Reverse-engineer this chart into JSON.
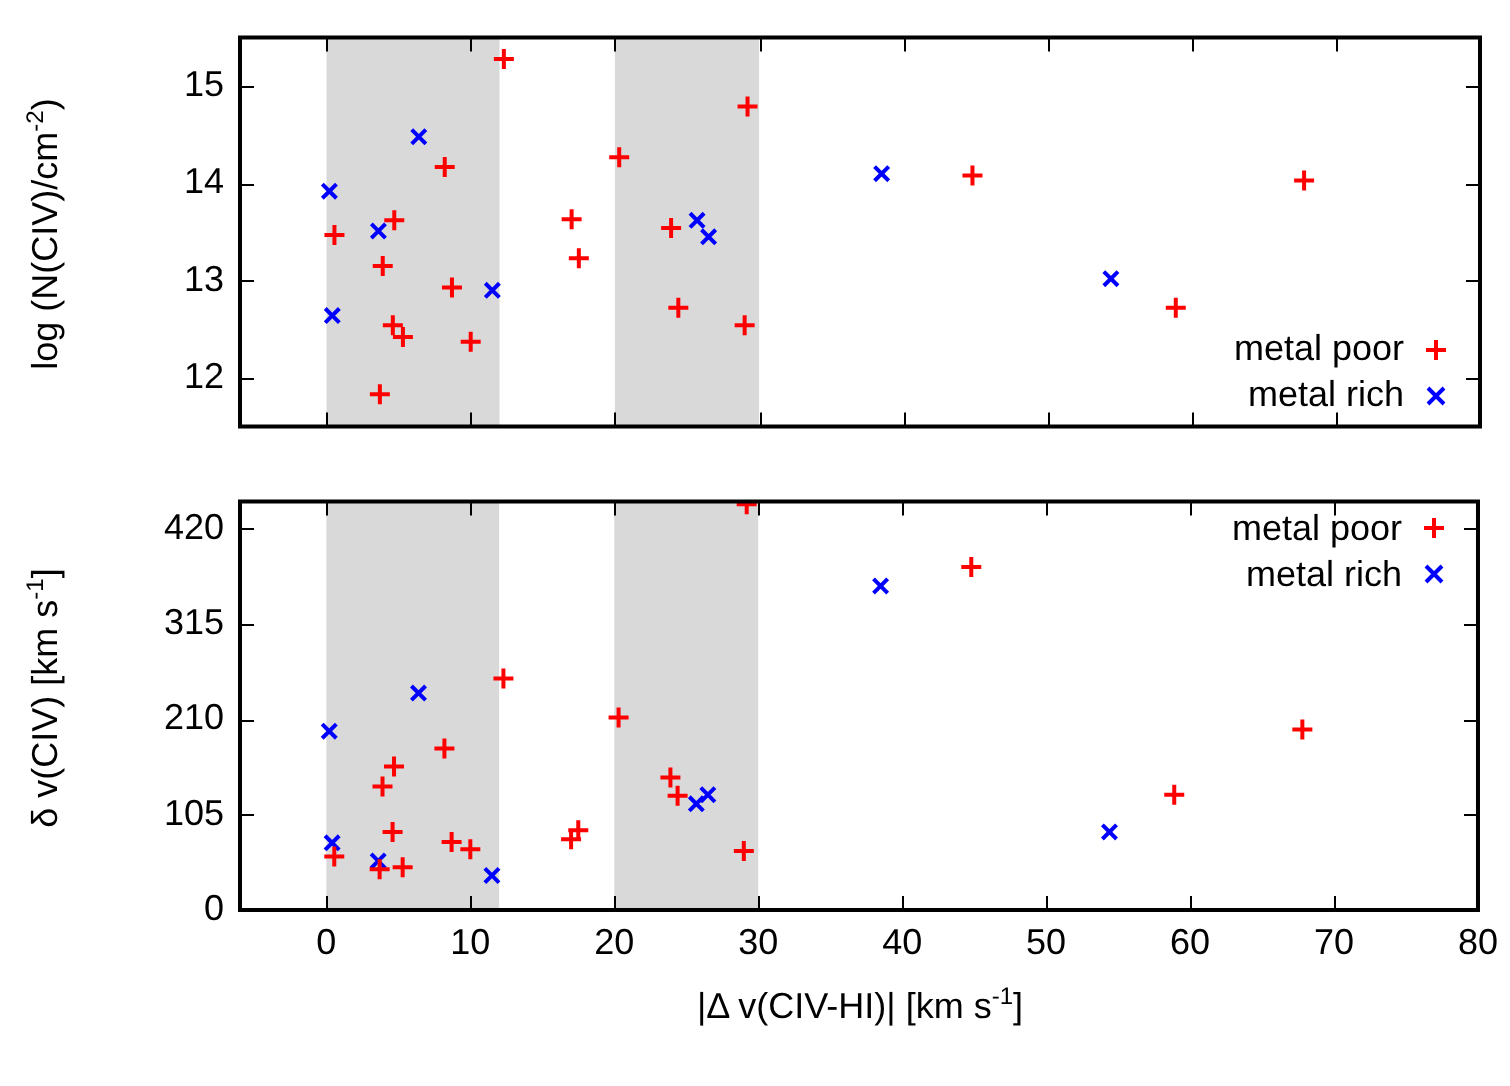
{
  "chart_data": [
    {
      "type": "scatter",
      "ylabel": "log (N(CIV)/cm$^{-2}$)",
      "xlim": [
        -6,
        80
      ],
      "xticks": [
        0,
        10,
        20,
        30,
        40,
        50,
        60,
        70,
        80
      ],
      "ylim": [
        11.5,
        15.5
      ],
      "yticks": [
        12,
        13,
        14,
        15
      ],
      "tick_labels": "y",
      "grid": false,
      "legend": "bottom right",
      "bands": [
        {
          "axis": "x",
          "from": 0,
          "to": 12,
          "color": "#d9d9d9"
        },
        {
          "axis": "x",
          "from": 20,
          "to": 30,
          "color": "#d9d9d9"
        }
      ],
      "series": [
        {
          "name": "metal poor",
          "color": "#ff0000",
          "marker": "plus",
          "x": [
            12.3,
            29.2,
            20.3,
            8.2,
            4.7,
            0.55,
            3.9,
            8.7,
            4.6,
            5.3,
            10.0,
            3.7,
            17.0,
            17.5,
            23.9,
            24.4,
            29.0,
            44.8,
            67.8,
            58.9
          ],
          "values": [
            15.28,
            14.79,
            14.27,
            14.17,
            13.62,
            13.47,
            13.15,
            12.93,
            12.54,
            12.42,
            12.37,
            11.83,
            13.63,
            13.23,
            13.54,
            12.72,
            12.54,
            14.08,
            14.03,
            12.72
          ]
        },
        {
          "name": "metal rich",
          "color": "#0000ff",
          "marker": "cross",
          "x": [
            0.2,
            0.4,
            3.6,
            6.4,
            11.5,
            25.7,
            26.5,
            38.5,
            54.4
          ],
          "values": [
            13.92,
            12.64,
            13.51,
            14.48,
            12.9,
            13.62,
            13.45,
            14.1,
            13.02
          ]
        }
      ]
    },
    {
      "type": "scatter",
      "xlabel": "|Δ v(CIV-HI)| [km s$^{-1}$]",
      "ylabel": "δ v(CIV) [km s$^{-1}$]",
      "xlim": [
        -6,
        80
      ],
      "xticks": [
        0,
        10,
        20,
        30,
        40,
        50,
        60,
        70,
        80
      ],
      "ylim": [
        0,
        450
      ],
      "yticks": [
        0,
        105,
        210,
        315,
        420
      ],
      "grid": false,
      "legend": "top right",
      "bands": [
        {
          "axis": "x",
          "from": 0,
          "to": 12,
          "color": "#d9d9d9"
        },
        {
          "axis": "x",
          "from": 20,
          "to": 30,
          "color": "#d9d9d9"
        }
      ],
      "series": [
        {
          "name": "metal poor",
          "color": "#ff0000",
          "marker": "plus",
          "x": [
            29.2,
            12.3,
            20.3,
            8.2,
            4.7,
            3.9,
            23.9,
            24.4,
            4.6,
            8.7,
            10.0,
            0.55,
            3.7,
            5.3,
            17.0,
            17.5,
            29.0,
            44.8,
            58.9,
            67.8
          ],
          "values": [
            447,
            255,
            212,
            178,
            158,
            136,
            146,
            126,
            86,
            75,
            67,
            59,
            45,
            47,
            78,
            88,
            65,
            378,
            127,
            199
          ]
        },
        {
          "name": "metal rich",
          "color": "#0000ff",
          "marker": "cross",
          "x": [
            0.2,
            0.4,
            3.6,
            6.4,
            11.5,
            25.7,
            26.5,
            38.5,
            54.4
          ],
          "values": [
            197,
            74,
            54,
            239,
            38,
            117,
            127,
            357,
            86
          ]
        }
      ]
    }
  ]
}
